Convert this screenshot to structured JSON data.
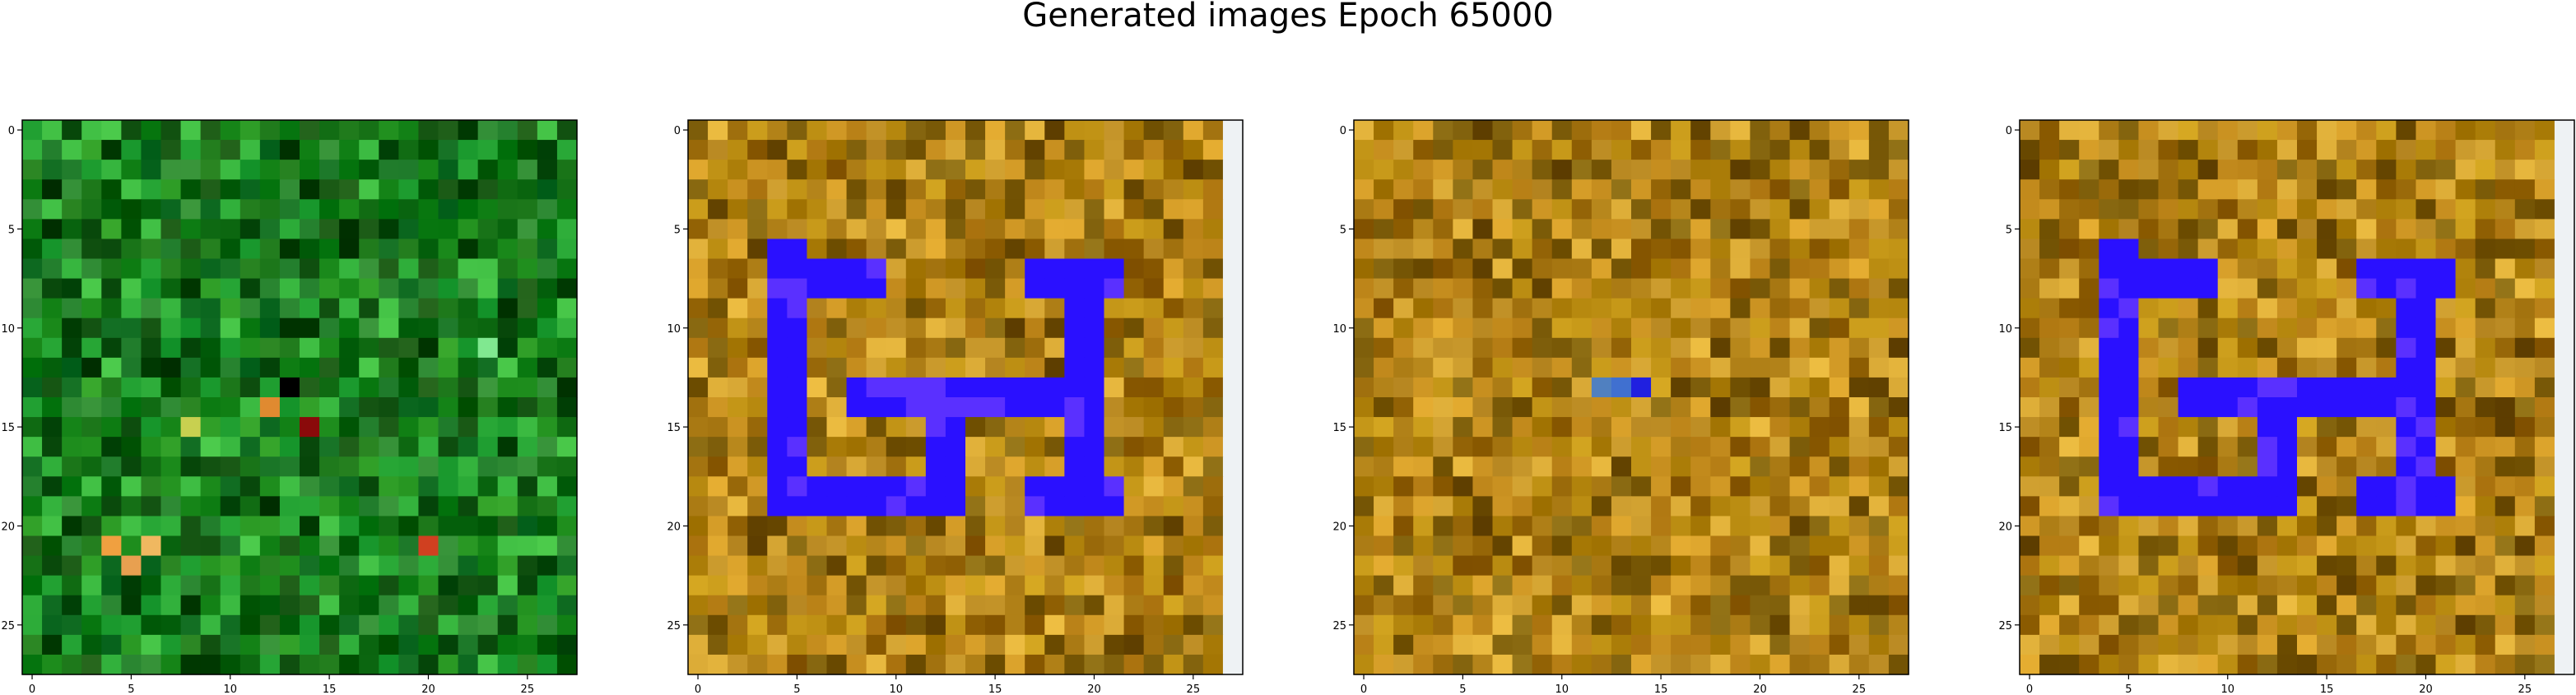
{
  "figure": {
    "title": "Generated images Epoch 65000"
  },
  "chart_data": [
    {
      "type": "heatmap",
      "panel": 1,
      "description": "28x28 RGB generated image, predominantly green noise",
      "rows": 28,
      "cols": 28,
      "x_ticks": [
        0,
        5,
        10,
        15,
        20,
        25
      ],
      "y_ticks": [
        0,
        5,
        10,
        15,
        20,
        25
      ],
      "xlim": [
        -0.5,
        27.5
      ],
      "ylim": [
        27.5,
        -0.5
      ],
      "dominant_palette": [
        "#0f6a12",
        "#1b8a1b",
        "#0a4a0c",
        "#2fae3a",
        "#1e7a2a"
      ],
      "highlights": [
        {
          "row": 13,
          "col": 13,
          "color": "#000000"
        },
        {
          "row": 14,
          "col": 12,
          "color": "#e08a30"
        },
        {
          "row": 15,
          "col": 8,
          "color": "#c8d050"
        },
        {
          "row": 15,
          "col": 14,
          "color": "#8a0a0a"
        },
        {
          "row": 21,
          "col": 4,
          "color": "#f0a040"
        },
        {
          "row": 21,
          "col": 6,
          "color": "#f0b860"
        },
        {
          "row": 22,
          "col": 5,
          "color": "#e8a050"
        },
        {
          "row": 21,
          "col": 20,
          "color": "#d04020"
        },
        {
          "row": 11,
          "col": 23,
          "color": "#80e890"
        }
      ]
    },
    {
      "type": "heatmap",
      "panel": 2,
      "description": "28x28 RGB generated image, ochre noise with blue 'E'-like shape",
      "rows": 28,
      "cols": 28,
      "x_ticks": [
        0,
        5,
        10,
        15,
        20,
        25
      ],
      "y_ticks": [
        0,
        5,
        10,
        15,
        20,
        25
      ],
      "xlim": [
        -0.5,
        27.5
      ],
      "ylim": [
        27.5,
        -0.5
      ],
      "dominant_palette": [
        "#b88a10",
        "#9a6a0a",
        "#c89020",
        "#7a5a08",
        "#d0a030"
      ],
      "shape_color": "#2a10ff",
      "shape_accent": "#5a30ff",
      "right_strip_color": "#eef2f4"
    },
    {
      "type": "heatmap",
      "panel": 3,
      "description": "28x28 RGB generated image, ochre noise without clear shape",
      "rows": 28,
      "cols": 28,
      "x_ticks": [
        0,
        5,
        10,
        15,
        20,
        25
      ],
      "y_ticks": [
        0,
        5,
        10,
        15,
        20,
        25
      ],
      "xlim": [
        -0.5,
        27.5
      ],
      "ylim": [
        27.5,
        -0.5
      ],
      "dominant_palette": [
        "#b88a10",
        "#9a6a0a",
        "#c89020",
        "#7a5a08",
        "#d0a030"
      ],
      "highlights": [
        {
          "row": 13,
          "col": 12,
          "color": "#5080c0"
        },
        {
          "row": 13,
          "col": 13,
          "color": "#4070d0"
        },
        {
          "row": 13,
          "col": 14,
          "color": "#2020e0"
        }
      ]
    },
    {
      "type": "heatmap",
      "panel": 4,
      "description": "28x28 RGB generated image, near-duplicate of panel 2",
      "rows": 28,
      "cols": 28,
      "x_ticks": [
        0,
        5,
        10,
        15,
        20,
        25
      ],
      "y_ticks": [
        0,
        5,
        10,
        15,
        20,
        25
      ],
      "xlim": [
        -0.5,
        27.5
      ],
      "ylim": [
        27.5,
        -0.5
      ],
      "dominant_palette": [
        "#b88a10",
        "#9a6a0a",
        "#c89020",
        "#7a5a08",
        "#d0a030"
      ],
      "shape_color": "#2a10ff",
      "shape_accent": "#5a30ff",
      "right_strip_color": "#eef2f4"
    }
  ]
}
